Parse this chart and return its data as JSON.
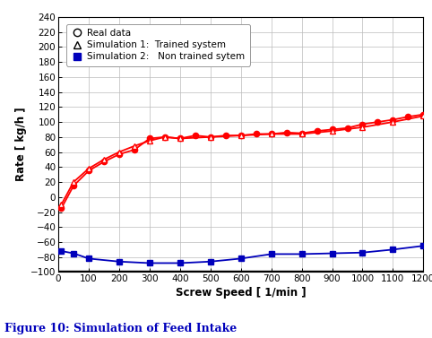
{
  "xlabel": "Screw Speed [ 1/min ]",
  "ylabel": "Rate [ kg/h ]",
  "xlim": [
    0,
    1200
  ],
  "ylim": [
    -100,
    240
  ],
  "yticks": [
    -100,
    -80,
    -60,
    -40,
    -20,
    0,
    20,
    40,
    60,
    80,
    100,
    120,
    140,
    160,
    180,
    200,
    220,
    240
  ],
  "xticks": [
    0,
    100,
    200,
    300,
    400,
    500,
    600,
    700,
    800,
    900,
    1000,
    1100,
    1200
  ],
  "real_data_x": [
    10,
    50,
    100,
    150,
    200,
    250,
    300,
    350,
    400,
    450,
    500,
    550,
    600,
    650,
    700,
    750,
    800,
    850,
    900,
    950,
    1000,
    1050,
    1100,
    1150,
    1200
  ],
  "real_data_y": [
    -15,
    15,
    35,
    47,
    57,
    63,
    78,
    80,
    78,
    82,
    80,
    82,
    82,
    84,
    84,
    86,
    85,
    88,
    90,
    92,
    97,
    100,
    103,
    107,
    110
  ],
  "sim1_x": [
    10,
    50,
    100,
    150,
    200,
    250,
    300,
    350,
    400,
    500,
    600,
    700,
    800,
    900,
    1000,
    1100,
    1200
  ],
  "sim1_y": [
    -10,
    20,
    38,
    50,
    60,
    68,
    75,
    80,
    78,
    80,
    82,
    84,
    84,
    88,
    93,
    100,
    108
  ],
  "sim2_x": [
    10,
    50,
    100,
    200,
    300,
    400,
    500,
    600,
    700,
    800,
    900,
    1000,
    1100,
    1200
  ],
  "sim2_y": [
    -72,
    -75,
    -82,
    -86,
    -88,
    -88,
    -86,
    -82,
    -76,
    -76,
    -75,
    -74,
    -70,
    -65
  ],
  "color_red": "#ff0000",
  "color_blue": "#0000bb",
  "color_black": "#000000",
  "background": "#ffffff",
  "grid_color": "#bbbbbb",
  "legend_real": "Real data",
  "legend_sim1": "Simulation 1:  Trained system",
  "legend_sim2": "Simulation 2:   Non trained sytem",
  "figure_caption": "Figure 10: Simulation of Feed Intake"
}
